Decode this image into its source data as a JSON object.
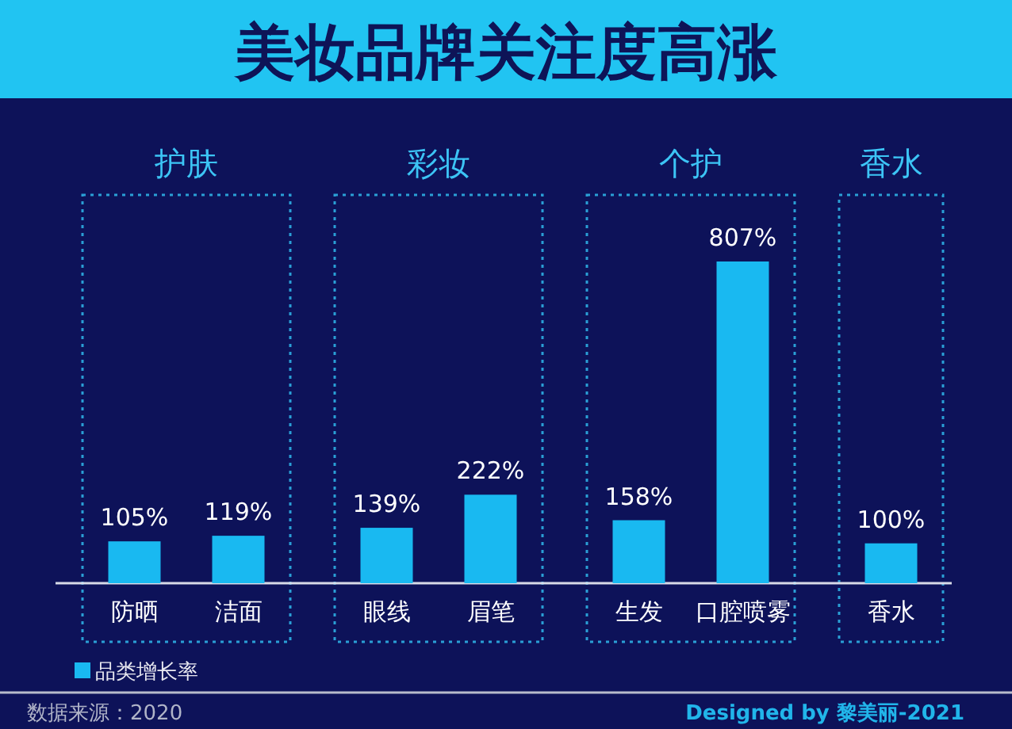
{
  "chart_data": [
    {
      "type": "other",
      "title": "美妆品牌关注度高涨",
      "annotations": [
        "数据来源：2020",
        "Designed by 黎美丽-2021"
      ]
    },
    {
      "type": "bar",
      "title": "护肤",
      "categories": [
        "防晒",
        "洁面"
      ],
      "series": [
        {
          "name": "品类增长率",
          "color": "#19b9f1",
          "values": [
            105,
            119
          ],
          "value_labels": [
            "105%",
            "119%"
          ]
        }
      ],
      "legend": "bottom left"
    },
    {
      "type": "bar",
      "title": "彩妆",
      "categories": [
        "眼线",
        "眉笔"
      ],
      "series": [
        {
          "color": "#19b9f1",
          "values": [
            139,
            222
          ],
          "value_labels": [
            "139%",
            "222%"
          ]
        }
      ]
    },
    {
      "type": "bar",
      "title": "个护",
      "categories": [
        "生发",
        "口腔喷雾"
      ],
      "series": [
        {
          "color": "#19b9f1",
          "values": [
            158,
            807
          ],
          "value_labels": [
            "158%",
            "807%"
          ]
        }
      ]
    },
    {
      "type": "bar",
      "title": "香水",
      "categories": [
        "香水"
      ],
      "series": [
        {
          "color": "#19b9f1",
          "values": [
            100
          ],
          "value_labels": [
            "100%"
          ]
        }
      ]
    }
  ]
}
